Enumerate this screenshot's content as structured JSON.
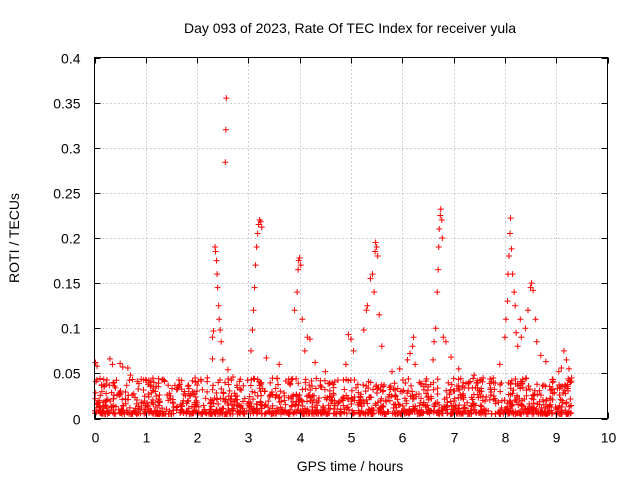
{
  "chart_data": {
    "type": "scatter",
    "title": "Day 093 of 2023, Rate Of TEC Index for receiver yula",
    "xlabel": "GPS time / hours",
    "ylabel": "ROTI / TECUs",
    "xlim": [
      0,
      10
    ],
    "ylim": [
      0,
      0.4
    ],
    "xticks": [
      0,
      1,
      2,
      3,
      4,
      5,
      6,
      7,
      8,
      9,
      10
    ],
    "yticks": [
      0,
      0.05,
      0.1,
      0.15,
      0.2,
      0.25,
      0.3,
      0.35,
      0.4
    ],
    "xtick_labels": [
      "0",
      "1",
      "2",
      "3",
      "4",
      "5",
      "6",
      "7",
      "8",
      "9",
      "10"
    ],
    "ytick_labels": [
      "0",
      "0.05",
      "0.1",
      "0.15",
      "0.2",
      "0.25",
      "0.3",
      "0.35",
      "0.4"
    ],
    "grid": true,
    "marker": "+",
    "color": "#ff0000",
    "series": [
      {
        "name": "ROTI",
        "note": "dense band of points ~0.005-0.05 TECU/s from 0 to 9.3 h (baseline), plus elevated bursts listed here",
        "baseline": {
          "x_start": 0.0,
          "x_end": 9.3,
          "y_min": 0.005,
          "y_max": 0.045
        },
        "points": [
          [
            0.02,
            0.062
          ],
          [
            0.05,
            0.058
          ],
          [
            0.3,
            0.066
          ],
          [
            0.35,
            0.06
          ],
          [
            0.5,
            0.061
          ],
          [
            0.55,
            0.057
          ],
          [
            0.65,
            0.056
          ],
          [
            0.7,
            0.048
          ],
          [
            1.0,
            0.043
          ],
          [
            1.7,
            0.042
          ],
          [
            2.0,
            0.037
          ],
          [
            2.2,
            0.045
          ],
          [
            2.3,
            0.066
          ],
          [
            2.3,
            0.09
          ],
          [
            2.32,
            0.097
          ],
          [
            2.35,
            0.19
          ],
          [
            2.36,
            0.185
          ],
          [
            2.38,
            0.175
          ],
          [
            2.39,
            0.16
          ],
          [
            2.4,
            0.145
          ],
          [
            2.42,
            0.125
          ],
          [
            2.43,
            0.11
          ],
          [
            2.45,
            0.098
          ],
          [
            2.47,
            0.085
          ],
          [
            2.5,
            0.065
          ],
          [
            2.55,
            0.284
          ],
          [
            2.56,
            0.32
          ],
          [
            2.57,
            0.355
          ],
          [
            2.6,
            0.054
          ],
          [
            2.7,
            0.046
          ],
          [
            3.05,
            0.075
          ],
          [
            3.08,
            0.098
          ],
          [
            3.1,
            0.12
          ],
          [
            3.12,
            0.145
          ],
          [
            3.14,
            0.17
          ],
          [
            3.16,
            0.19
          ],
          [
            3.18,
            0.205
          ],
          [
            3.2,
            0.215
          ],
          [
            3.22,
            0.22
          ],
          [
            3.24,
            0.218
          ],
          [
            3.26,
            0.212
          ],
          [
            3.35,
            0.067
          ],
          [
            3.6,
            0.06
          ],
          [
            3.9,
            0.12
          ],
          [
            3.95,
            0.14
          ],
          [
            3.97,
            0.165
          ],
          [
            3.98,
            0.175
          ],
          [
            4.0,
            0.178
          ],
          [
            4.02,
            0.17
          ],
          [
            4.05,
            0.11
          ],
          [
            4.1,
            0.075
          ],
          [
            4.15,
            0.09
          ],
          [
            4.2,
            0.088
          ],
          [
            4.3,
            0.062
          ],
          [
            4.5,
            0.052
          ],
          [
            4.9,
            0.06
          ],
          [
            4.95,
            0.093
          ],
          [
            5.0,
            0.088
          ],
          [
            5.05,
            0.075
          ],
          [
            5.25,
            0.098
          ],
          [
            5.3,
            0.12
          ],
          [
            5.32,
            0.125
          ],
          [
            5.38,
            0.155
          ],
          [
            5.42,
            0.16
          ],
          [
            5.45,
            0.14
          ],
          [
            5.47,
            0.185
          ],
          [
            5.48,
            0.195
          ],
          [
            5.5,
            0.19
          ],
          [
            5.52,
            0.18
          ],
          [
            5.55,
            0.115
          ],
          [
            5.6,
            0.08
          ],
          [
            5.8,
            0.052
          ],
          [
            5.95,
            0.055
          ],
          [
            6.1,
            0.065
          ],
          [
            6.15,
            0.072
          ],
          [
            6.2,
            0.08
          ],
          [
            6.22,
            0.09
          ],
          [
            6.25,
            0.06
          ],
          [
            6.6,
            0.065
          ],
          [
            6.62,
            0.085
          ],
          [
            6.65,
            0.1
          ],
          [
            6.68,
            0.14
          ],
          [
            6.7,
            0.165
          ],
          [
            6.71,
            0.19
          ],
          [
            6.72,
            0.21
          ],
          [
            6.74,
            0.225
          ],
          [
            6.75,
            0.232
          ],
          [
            6.77,
            0.22
          ],
          [
            6.78,
            0.2
          ],
          [
            6.8,
            0.09
          ],
          [
            6.85,
            0.085
          ],
          [
            6.95,
            0.068
          ],
          [
            7.1,
            0.055
          ],
          [
            7.4,
            0.048
          ],
          [
            7.9,
            0.06
          ],
          [
            8.0,
            0.09
          ],
          [
            8.02,
            0.11
          ],
          [
            8.05,
            0.13
          ],
          [
            8.06,
            0.16
          ],
          [
            8.08,
            0.18
          ],
          [
            8.1,
            0.205
          ],
          [
            8.11,
            0.222
          ],
          [
            8.13,
            0.188
          ],
          [
            8.15,
            0.16
          ],
          [
            8.18,
            0.14
          ],
          [
            8.2,
            0.125
          ],
          [
            8.22,
            0.095
          ],
          [
            8.25,
            0.08
          ],
          [
            8.3,
            0.11
          ],
          [
            8.32,
            0.09
          ],
          [
            8.4,
            0.1
          ],
          [
            8.45,
            0.12
          ],
          [
            8.5,
            0.145
          ],
          [
            8.52,
            0.15
          ],
          [
            8.55,
            0.142
          ],
          [
            8.6,
            0.11
          ],
          [
            8.62,
            0.085
          ],
          [
            8.7,
            0.07
          ],
          [
            8.8,
            0.063
          ],
          [
            9.05,
            0.052
          ],
          [
            9.1,
            0.056
          ],
          [
            9.15,
            0.075
          ],
          [
            9.2,
            0.065
          ],
          [
            9.25,
            0.055
          ],
          [
            9.3,
            0.045
          ]
        ]
      }
    ]
  }
}
